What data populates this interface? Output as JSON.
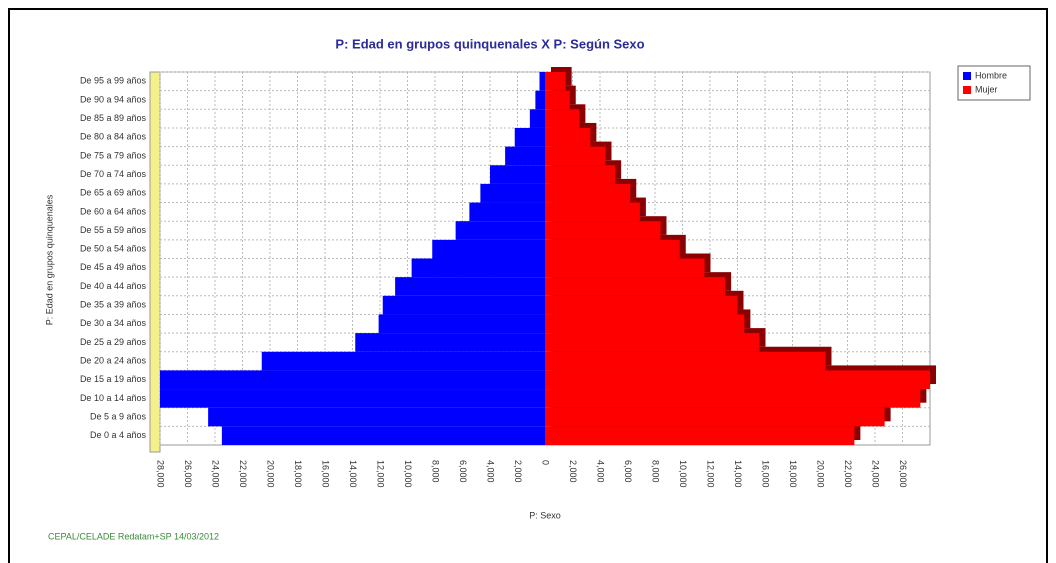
{
  "chart_data": {
    "type": "pyramid",
    "title": "P: Edad en grupos quinquenales X P: Según Sexo",
    "y_label": "P: Edad en grupos quinquenales",
    "x_label": "P: Sexo",
    "footer": "CEPAL/CELADE Redatam+SP 14/03/2012",
    "categories": [
      "De 0 a 4 años",
      "De 5 a 9 años",
      "De 10 a 14 años",
      "De 15 a 19 años",
      "De 20 a 24 años",
      "De 25 a 29 años",
      "De 30 a 34 años",
      "De 35 a 39 años",
      "De 40 a 44 años",
      "De 45 a 49 años",
      "De 50 a 54 años",
      "De 55 a 59 años",
      "De 60 a 64 años",
      "De 65 a 69 años",
      "De 70 a 74 años",
      "De 75 a 79 años",
      "De 80 a 84 años",
      "De 85 a 89 años",
      "De 90 a 94 años",
      "De 95 a 99 años"
    ],
    "series": [
      {
        "name": "Hombre",
        "color": "#0000ff",
        "side": "left",
        "values": [
          23500,
          24500,
          28000,
          28000,
          20600,
          13800,
          12100,
          11800,
          10900,
          9700,
          8200,
          6500,
          5500,
          4700,
          4000,
          2900,
          2200,
          1100,
          700,
          400
        ]
      },
      {
        "name": "Mujer",
        "color": "#ff0000",
        "side": "right",
        "values": [
          22500,
          24700,
          27300,
          28000,
          20400,
          15600,
          14500,
          14000,
          13100,
          11600,
          9800,
          8400,
          6900,
          6200,
          5100,
          4400,
          3300,
          2500,
          1800,
          1500
        ]
      }
    ],
    "xlim": [
      -28000,
      28000
    ],
    "xticks": [
      {
        "value": -28000,
        "label": "28,000"
      },
      {
        "value": -26000,
        "label": "26,000"
      },
      {
        "value": -24000,
        "label": "24,000"
      },
      {
        "value": -22000,
        "label": "22,000"
      },
      {
        "value": -20000,
        "label": "20,000"
      },
      {
        "value": -18000,
        "label": "18,000"
      },
      {
        "value": -16000,
        "label": "16,000"
      },
      {
        "value": -14000,
        "label": "14,000"
      },
      {
        "value": -12000,
        "label": "12,000"
      },
      {
        "value": -10000,
        "label": "10,000"
      },
      {
        "value": -8000,
        "label": "8,000"
      },
      {
        "value": -6000,
        "label": "6,000"
      },
      {
        "value": -4000,
        "label": "4,000"
      },
      {
        "value": -2000,
        "label": "2,000"
      },
      0,
      {
        "value": 2000,
        "label": "2,000"
      },
      {
        "value": 4000,
        "label": "4,000"
      },
      {
        "value": 6000,
        "label": "6,000"
      },
      {
        "value": 8000,
        "label": "8,000"
      },
      {
        "value": 10000,
        "label": "10,000"
      },
      {
        "value": 12000,
        "label": "12,000"
      },
      {
        "value": 14000,
        "label": "14,000"
      },
      {
        "value": 16000,
        "label": "16,000"
      },
      {
        "value": 18000,
        "label": "18,000"
      },
      {
        "value": 20000,
        "label": "20,000"
      },
      {
        "value": 22000,
        "label": "22,000"
      },
      {
        "value": 24000,
        "label": "24,000"
      },
      {
        "value": 26000,
        "label": "26,000"
      }
    ],
    "grid": true
  }
}
